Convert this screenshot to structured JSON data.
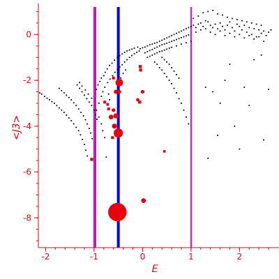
{
  "chart_data": {
    "type": "scatter",
    "xlabel": "E",
    "ylabel": "<J3>",
    "xlim": [
      -2.15,
      2.7
    ],
    "ylim": [
      -9.3,
      1.2
    ],
    "x_ticks": [
      "-2",
      "-1",
      "0",
      "1",
      "2"
    ],
    "x_tick_values": [
      -2,
      -1,
      0,
      1,
      2
    ],
    "y_ticks": [
      "0",
      "-2",
      "-4",
      "-6",
      "-8"
    ],
    "y_tick_values": [
      0,
      -2,
      -4,
      -6,
      -8
    ],
    "colors": {
      "axes": "#e8000b",
      "black_points": "#000000",
      "red_points": "#e8000b",
      "blue_line": "#0000ee",
      "magenta_line": "#e000e0",
      "purple_line": "#a0209a"
    },
    "vertical_lines": [
      {
        "x": -1.0,
        "color": "#e000e0"
      },
      {
        "x": -1.0,
        "color": "#a0209a"
      },
      {
        "x": -0.5,
        "color": "#0000ee"
      },
      {
        "x": 1.0,
        "color": "#e000e0"
      }
    ],
    "red_points": [
      {
        "x": -0.52,
        "y": -7.75,
        "weight": 1.0
      },
      {
        "x": -0.5,
        "y": -4.3,
        "weight": 0.45
      },
      {
        "x": -0.48,
        "y": -2.1,
        "weight": 0.35
      },
      {
        "x": -0.55,
        "y": -3.55,
        "weight": 0.2
      },
      {
        "x": -0.58,
        "y": -4.0,
        "weight": 0.2
      },
      {
        "x": -0.65,
        "y": -3.6,
        "weight": 0.18
      },
      {
        "x": -0.6,
        "y": -3.3,
        "weight": 0.12
      },
      {
        "x": -0.55,
        "y": -2.5,
        "weight": 0.15
      },
      {
        "x": -0.48,
        "y": -2.5,
        "weight": 0.12
      },
      {
        "x": 0.02,
        "y": -7.25,
        "weight": 0.18
      },
      {
        "x": 0.0,
        "y": -2.5,
        "weight": 0.12
      },
      {
        "x": -0.1,
        "y": -2.85,
        "weight": 0.1
      },
      {
        "x": -0.06,
        "y": -2.95,
        "weight": 0.08
      },
      {
        "x": -0.05,
        "y": -1.4,
        "weight": 0.08
      },
      {
        "x": -0.04,
        "y": -1.55,
        "weight": 0.08
      },
      {
        "x": -0.7,
        "y": -3.25,
        "weight": 0.07
      },
      {
        "x": -0.78,
        "y": -2.95,
        "weight": 0.07
      },
      {
        "x": -0.72,
        "y": -3.05,
        "weight": 0.06
      },
      {
        "x": -0.6,
        "y": -1.9,
        "weight": 0.07
      },
      {
        "x": -0.62,
        "y": -4.5,
        "weight": 0.07
      },
      {
        "x": -1.05,
        "y": -5.45,
        "weight": 0.08
      },
      {
        "x": 0.45,
        "y": -5.1,
        "weight": 0.05
      }
    ],
    "black_points": [
      [
        -2.12,
        -2.55
      ],
      [
        -2.08,
        -2.6
      ],
      [
        -2.02,
        -2.7
      ],
      [
        -1.97,
        -2.78
      ],
      [
        -1.92,
        -2.85
      ],
      [
        -1.87,
        -2.93
      ],
      [
        -1.82,
        -3.0
      ],
      [
        -1.77,
        -3.1
      ],
      [
        -1.72,
        -3.2
      ],
      [
        -1.67,
        -3.3
      ],
      [
        -1.62,
        -3.4
      ],
      [
        -1.57,
        -3.52
      ],
      [
        -1.52,
        -3.64
      ],
      [
        -1.47,
        -3.76
      ],
      [
        -1.42,
        -3.9
      ],
      [
        -1.37,
        -4.05
      ],
      [
        -1.32,
        -4.2
      ],
      [
        -1.28,
        -4.38
      ],
      [
        -1.24,
        -4.58
      ],
      [
        -1.2,
        -4.8
      ],
      [
        -1.17,
        -5.05
      ],
      [
        -1.14,
        -5.3
      ],
      [
        -1.72,
        -2.35
      ],
      [
        -1.67,
        -2.45
      ],
      [
        -1.62,
        -2.55
      ],
      [
        -1.57,
        -2.65
      ],
      [
        -1.52,
        -2.75
      ],
      [
        -1.47,
        -2.85
      ],
      [
        -1.42,
        -2.98
      ],
      [
        -1.37,
        -3.1
      ],
      [
        -1.32,
        -3.25
      ],
      [
        -1.27,
        -3.4
      ],
      [
        -1.22,
        -3.55
      ],
      [
        -1.18,
        -3.72
      ],
      [
        -1.14,
        -3.9
      ],
      [
        -1.1,
        -4.1
      ],
      [
        -1.07,
        -4.3
      ],
      [
        -1.04,
        -4.55
      ],
      [
        -1.35,
        -2.2
      ],
      [
        -1.3,
        -2.35
      ],
      [
        -1.25,
        -2.5
      ],
      [
        -1.2,
        -2.65
      ],
      [
        -1.15,
        -2.8
      ],
      [
        -1.1,
        -2.95
      ],
      [
        -1.05,
        -3.1
      ],
      [
        -1.0,
        -3.3
      ],
      [
        -0.97,
        -3.5
      ],
      [
        -0.94,
        -3.7
      ],
      [
        -1.3,
        -2.1
      ],
      [
        -1.25,
        -2.25
      ],
      [
        -1.18,
        -2.42
      ],
      [
        -1.12,
        -2.6
      ],
      [
        -1.05,
        -2.78
      ],
      [
        -0.95,
        -2.4
      ],
      [
        -0.92,
        -2.2
      ],
      [
        -0.88,
        -2.05
      ],
      [
        -0.85,
        -1.9
      ],
      [
        -0.8,
        -1.8
      ],
      [
        -0.77,
        -1.65
      ],
      [
        -0.73,
        -1.5
      ],
      [
        -0.68,
        -1.35
      ],
      [
        -0.63,
        -1.25
      ],
      [
        -0.58,
        -1.12
      ],
      [
        -0.52,
        -1.0
      ],
      [
        -0.47,
        -0.92
      ],
      [
        -0.42,
        -0.85
      ],
      [
        -0.37,
        -0.78
      ],
      [
        -0.32,
        -0.72
      ],
      [
        -0.27,
        -0.68
      ],
      [
        -0.22,
        -0.64
      ],
      [
        -0.17,
        -0.6
      ],
      [
        -0.1,
        -0.55
      ],
      [
        -0.9,
        -3.0
      ],
      [
        -0.85,
        -2.7
      ],
      [
        -0.82,
        -2.5
      ],
      [
        -0.78,
        -2.3
      ],
      [
        -0.72,
        -2.1
      ],
      [
        -0.67,
        -1.95
      ],
      [
        -0.62,
        -1.8
      ],
      [
        -0.57,
        -1.65
      ],
      [
        -0.52,
        -1.52
      ],
      [
        -0.47,
        -1.42
      ],
      [
        -0.42,
        -1.32
      ],
      [
        -0.37,
        -1.2
      ],
      [
        -0.32,
        -1.1
      ],
      [
        -0.27,
        -1.0
      ],
      [
        -0.22,
        -0.92
      ],
      [
        -0.17,
        -0.84
      ],
      [
        -0.12,
        -0.78
      ],
      [
        -0.07,
        -0.72
      ],
      [
        -0.95,
        -3.3
      ],
      [
        -0.9,
        -3.6
      ],
      [
        -0.85,
        -3.9
      ],
      [
        -0.82,
        -4.2
      ],
      [
        -0.78,
        -4.5
      ],
      [
        -0.75,
        -5.35
      ],
      [
        -0.7,
        -2.6
      ],
      [
        -0.68,
        -2.85
      ],
      [
        -0.45,
        -1.9
      ],
      [
        -0.4,
        -1.7
      ],
      [
        -0.35,
        -1.55
      ],
      [
        -0.05,
        -0.62
      ],
      [
        0.0,
        -0.58
      ],
      [
        0.05,
        -0.55
      ],
      [
        0.1,
        -0.5
      ],
      [
        0.15,
        -0.45
      ],
      [
        0.2,
        -0.42
      ],
      [
        0.25,
        -0.38
      ],
      [
        0.3,
        -0.35
      ],
      [
        0.35,
        -0.3
      ],
      [
        0.4,
        -0.25
      ],
      [
        0.45,
        -0.2
      ],
      [
        0.5,
        -0.15
      ],
      [
        0.55,
        -0.1
      ],
      [
        0.6,
        -0.05
      ],
      [
        0.65,
        0.0
      ],
      [
        0.7,
        0.05
      ],
      [
        0.75,
        0.1
      ],
      [
        0.8,
        0.15
      ],
      [
        0.85,
        0.2
      ],
      [
        0.9,
        0.25
      ],
      [
        0.95,
        0.3
      ],
      [
        1.0,
        0.35
      ],
      [
        0.05,
        -0.8
      ],
      [
        0.1,
        -0.75
      ],
      [
        0.15,
        -0.7
      ],
      [
        0.2,
        -0.65
      ],
      [
        0.25,
        -0.6
      ],
      [
        0.3,
        -0.55
      ],
      [
        0.35,
        -0.5
      ],
      [
        0.4,
        -0.45
      ],
      [
        0.45,
        -0.42
      ],
      [
        0.5,
        -0.38
      ],
      [
        0.55,
        -0.34
      ],
      [
        0.6,
        -0.3
      ],
      [
        0.65,
        -0.26
      ],
      [
        0.7,
        -0.22
      ],
      [
        0.75,
        -0.18
      ],
      [
        0.8,
        -0.14
      ],
      [
        0.85,
        -0.1
      ],
      [
        0.9,
        -0.06
      ],
      [
        0.95,
        -0.02
      ],
      [
        0.1,
        -1.0
      ],
      [
        0.15,
        -0.95
      ],
      [
        0.2,
        -0.9
      ],
      [
        0.25,
        -0.85
      ],
      [
        0.3,
        -0.8
      ],
      [
        0.35,
        -0.75
      ],
      [
        0.4,
        -0.72
      ],
      [
        0.45,
        -0.68
      ],
      [
        0.5,
        -0.64
      ],
      [
        0.55,
        -0.6
      ],
      [
        0.6,
        -0.56
      ],
      [
        0.7,
        -0.5
      ],
      [
        0.8,
        -0.42
      ],
      [
        0.9,
        -0.36
      ],
      [
        0.25,
        -1.2
      ],
      [
        0.3,
        -1.3
      ],
      [
        0.35,
        -1.45
      ],
      [
        0.4,
        -1.55
      ],
      [
        0.45,
        -1.7
      ],
      [
        0.5,
        -1.85
      ],
      [
        0.55,
        -2.0
      ],
      [
        0.6,
        -2.15
      ],
      [
        0.65,
        -2.35
      ],
      [
        0.7,
        -2.55
      ],
      [
        0.75,
        -2.8
      ],
      [
        0.8,
        -3.0
      ],
      [
        0.85,
        -3.3
      ],
      [
        0.9,
        -3.6
      ],
      [
        0.95,
        -3.9
      ],
      [
        0.4,
        -1.0
      ],
      [
        0.45,
        -1.1
      ],
      [
        0.5,
        -1.2
      ],
      [
        0.55,
        -1.3
      ],
      [
        0.6,
        -1.45
      ],
      [
        0.65,
        -1.6
      ],
      [
        0.7,
        -1.75
      ],
      [
        0.75,
        -1.9
      ],
      [
        1.0,
        -0.3
      ],
      [
        1.05,
        0.4
      ],
      [
        1.1,
        0.3
      ],
      [
        1.15,
        0.45
      ],
      [
        1.2,
        0.5
      ],
      [
        1.25,
        0.35
      ],
      [
        1.3,
        0.6
      ],
      [
        1.35,
        0.55
      ],
      [
        1.4,
        0.4
      ],
      [
        1.45,
        0.3
      ],
      [
        1.5,
        0.45
      ],
      [
        1.55,
        0.25
      ],
      [
        1.6,
        0.5
      ],
      [
        1.65,
        0.35
      ],
      [
        1.7,
        0.2
      ],
      [
        1.75,
        0.4
      ],
      [
        1.8,
        0.55
      ],
      [
        1.85,
        0.3
      ],
      [
        1.9,
        0.15
      ],
      [
        1.95,
        0.45
      ],
      [
        2.0,
        0.35
      ],
      [
        2.05,
        0.2
      ],
      [
        2.1,
        0.4
      ],
      [
        2.15,
        0.1
      ],
      [
        2.2,
        0.3
      ],
      [
        2.25,
        0.0
      ],
      [
        2.3,
        0.25
      ],
      [
        2.35,
        -0.1
      ],
      [
        2.4,
        0.2
      ],
      [
        2.45,
        0.05
      ],
      [
        2.5,
        0.15
      ],
      [
        2.55,
        -0.05
      ],
      [
        2.6,
        0.1
      ],
      [
        2.65,
        0.2
      ],
      [
        1.1,
        0.1
      ],
      [
        1.2,
        0.2
      ],
      [
        1.3,
        0.25
      ],
      [
        1.4,
        0.1
      ],
      [
        1.5,
        0.0
      ],
      [
        1.6,
        0.15
      ],
      [
        1.7,
        -0.05
      ],
      [
        1.8,
        0.05
      ],
      [
        1.9,
        -0.1
      ],
      [
        2.0,
        0.0
      ],
      [
        2.1,
        -0.15
      ],
      [
        2.2,
        -0.05
      ],
      [
        2.3,
        -0.2
      ],
      [
        2.4,
        -0.1
      ],
      [
        2.5,
        -0.3
      ],
      [
        1.05,
        0.7
      ],
      [
        1.15,
        0.8
      ],
      [
        1.25,
        0.95
      ],
      [
        1.35,
        1.0
      ],
      [
        1.45,
        1.05
      ],
      [
        1.55,
        0.9
      ],
      [
        1.65,
        0.85
      ],
      [
        1.75,
        0.75
      ],
      [
        1.85,
        0.7
      ],
      [
        1.95,
        0.65
      ],
      [
        2.05,
        0.6
      ],
      [
        2.15,
        0.55
      ],
      [
        2.25,
        0.5
      ],
      [
        2.35,
        0.45
      ],
      [
        2.45,
        0.4
      ],
      [
        1.3,
        -2.3
      ],
      [
        1.45,
        -2.5
      ],
      [
        1.6,
        -3.0
      ],
      [
        1.7,
        -2.0
      ],
      [
        1.8,
        -1.3
      ],
      [
        2.1,
        -2.3
      ],
      [
        2.2,
        -3.1
      ],
      [
        2.3,
        -1.1
      ],
      [
        2.45,
        -0.9
      ],
      [
        2.6,
        -2.4
      ],
      [
        1.9,
        -4.0
      ],
      [
        2.0,
        -5.0
      ],
      [
        1.35,
        -5.4
      ],
      [
        1.55,
        -4.4
      ],
      [
        2.5,
        -4.6
      ]
    ]
  }
}
